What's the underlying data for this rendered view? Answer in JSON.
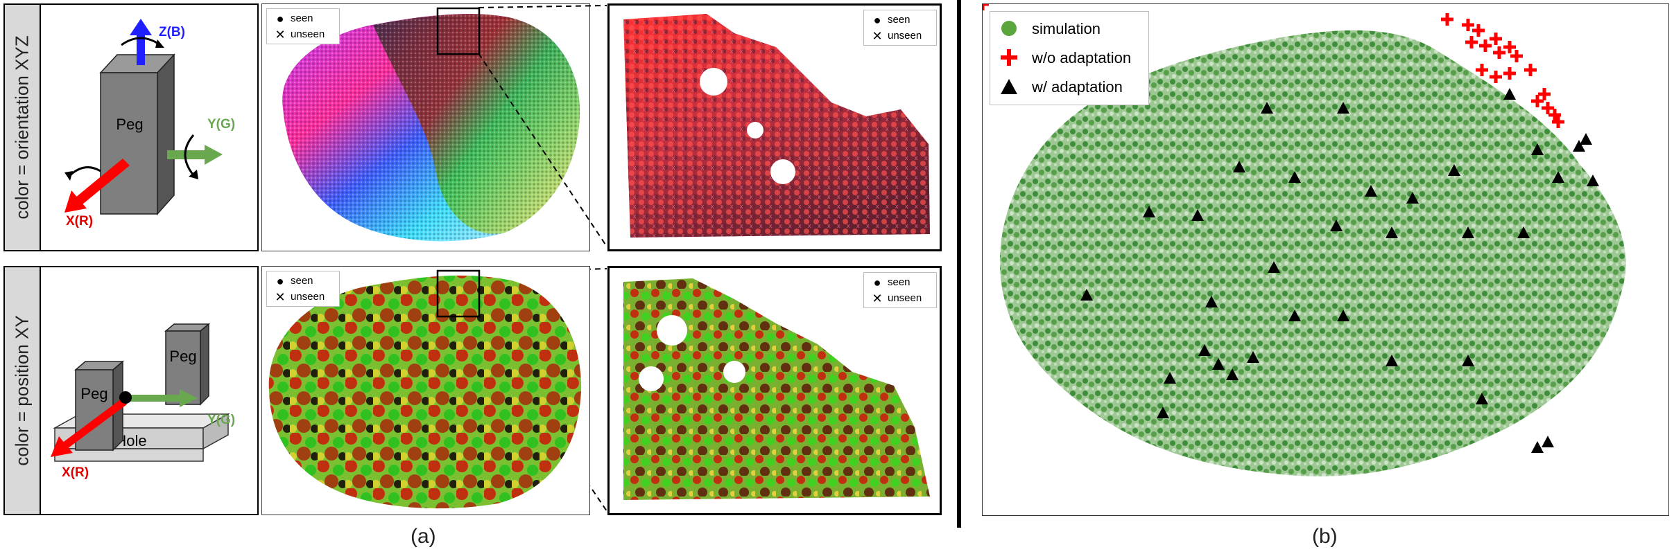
{
  "panel_a": {
    "caption": "(a)",
    "row1": {
      "side_label": "color = orientation XYZ",
      "diagram": {
        "peg_label": "Peg",
        "axis_z": "Z(B)",
        "axis_y": "Y(G)",
        "axis_x": "X(R)"
      },
      "legend": [
        "seen",
        "unseen"
      ],
      "zoom_legend": [
        "seen",
        "unseen"
      ]
    },
    "row2": {
      "side_label": "color = position XY",
      "diagram": {
        "peg_label_a": "Peg",
        "peg_label_b": "Peg",
        "hole_label": "Hole",
        "axis_y": "Y(G)",
        "axis_x": "X(R)"
      },
      "legend": [
        "seen",
        "unseen"
      ],
      "zoom_legend": [
        "seen",
        "unseen"
      ]
    }
  },
  "panel_b": {
    "caption": "(b)",
    "legend": [
      {
        "label": "simulation",
        "marker": "circle",
        "color": "#5aa53c"
      },
      {
        "label": "w/o adaptation",
        "marker": "plus",
        "color": "#ff0000"
      },
      {
        "label": "w/ adaptation",
        "marker": "triangle",
        "color": "#000000"
      }
    ]
  },
  "colors": {
    "axis_red": "#ff0000",
    "axis_green": "#6aa84f",
    "axis_blue": "#1f1fff",
    "peg_gray": "#7f7f7f",
    "simulation_green": "#3a9a2a"
  }
}
